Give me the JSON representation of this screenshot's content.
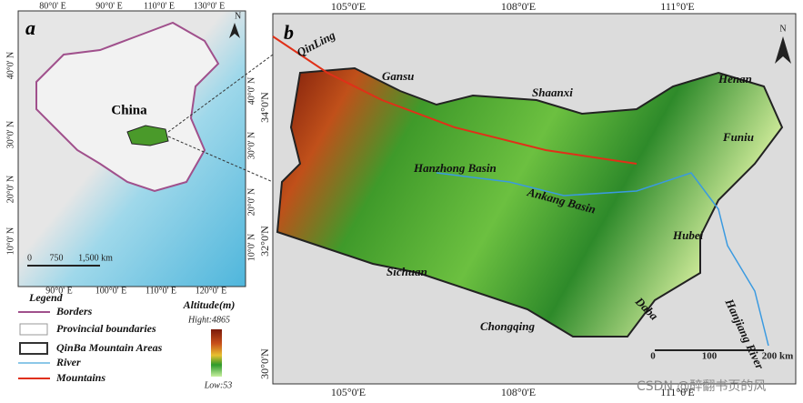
{
  "panel_a": {
    "label": "a",
    "north": "N",
    "country": "China",
    "top_ticks": [
      "80°0' E",
      "90°0' E",
      "110°0' E",
      "130°0' E"
    ],
    "left_ticks": [
      "40°0' N",
      "30°0' N",
      "20°0' N",
      "10°0' N"
    ],
    "right_ticks": [
      "40°0' N",
      "30°0' N",
      "20°0' N",
      "10°0' N"
    ],
    "bottom_ticks": [
      "90°0' E",
      "100°0' E",
      "110°0' E",
      "120°0' E"
    ],
    "scale": [
      "0",
      "750",
      "1,500 km"
    ]
  },
  "legend": {
    "title": "Legend",
    "items": [
      "Borders",
      "Provincial boundaries",
      "QinBa Mountain Areas",
      "River",
      "Mountains"
    ],
    "altitude_title": "Altitude(m)",
    "high": "Hight:4865",
    "low": "Low:53"
  },
  "panel_b": {
    "label": "b",
    "north": "N",
    "top_ticks": [
      "105°0'E",
      "108°0'E",
      "111°0'E"
    ],
    "bottom_ticks": [
      "105°0'E",
      "108°0'E",
      "111°0'E"
    ],
    "left_ticks": [
      "34°0'N",
      "32°0'N",
      "30°0'N"
    ],
    "places": [
      "QinLing",
      "Gansu",
      "Shaanxi",
      "Henan",
      "Funiu",
      "Hanzhong Basin",
      "Ankang Basin",
      "Hubei",
      "Sichuan",
      "Chongqing",
      "Daba",
      "Hanjiang River"
    ],
    "scale": [
      "0",
      "100",
      "200 km"
    ]
  },
  "watermark": "CSDN @醉翻书页的风"
}
